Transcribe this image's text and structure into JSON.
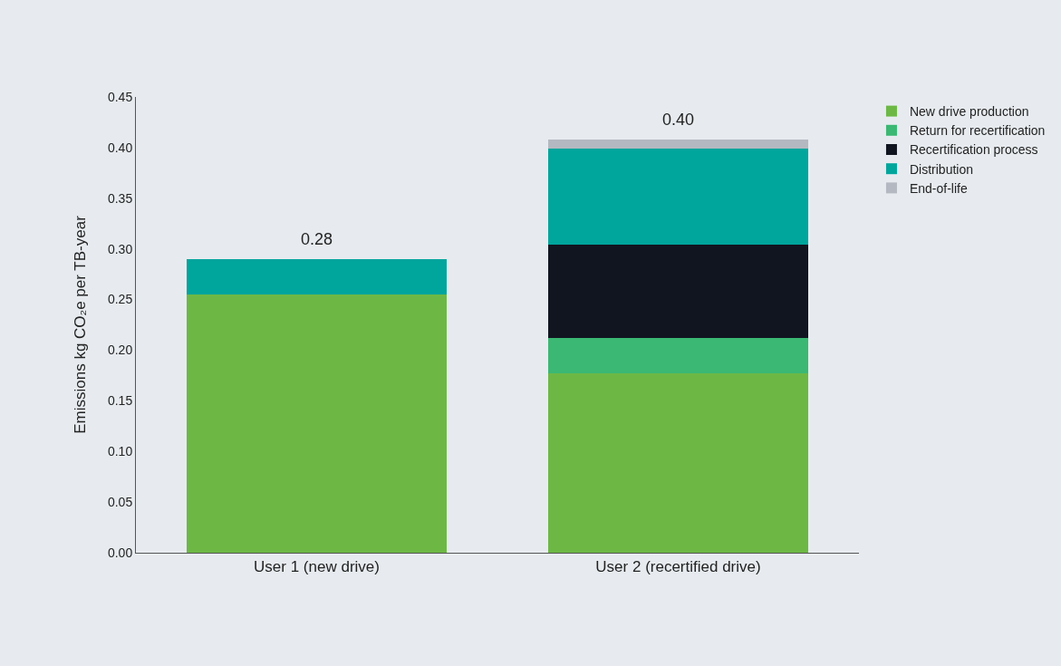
{
  "chart_data": {
    "type": "bar",
    "stacked": true,
    "ylabel": "Emissions kg CO₂e per TB-year",
    "categories": [
      "User 1 (new drive)",
      "User 2 (recertified drive)"
    ],
    "series": [
      {
        "name": "New drive production",
        "color": "#6db845",
        "values": [
          0.255,
          0.177
        ]
      },
      {
        "name": "Return for recertification",
        "color": "#3bb873",
        "values": [
          null,
          0.035
        ]
      },
      {
        "name": "Recertification process",
        "color": "#111520",
        "values": [
          null,
          0.092
        ]
      },
      {
        "name": "Distribution",
        "color": "#00a59c",
        "values": [
          0.035,
          0.095
        ]
      },
      {
        "name": "End-of-life",
        "color": "#b4b8c0",
        "values": [
          null,
          0.009
        ]
      }
    ],
    "totals": [
      "0.28",
      "0.40"
    ],
    "ylim": [
      0,
      0.45
    ],
    "yticks": [
      {
        "value": 0,
        "label": "0.00"
      },
      0.05,
      {
        "value": 0.1,
        "label": "0.10"
      },
      0.15,
      {
        "value": 0.2,
        "label": "0.20"
      },
      0.25,
      {
        "value": 0.3,
        "label": "0.30"
      },
      0.35,
      {
        "value": 0.4,
        "label": "0.40"
      },
      0.45
    ],
    "grid": false,
    "legend": "top right"
  }
}
